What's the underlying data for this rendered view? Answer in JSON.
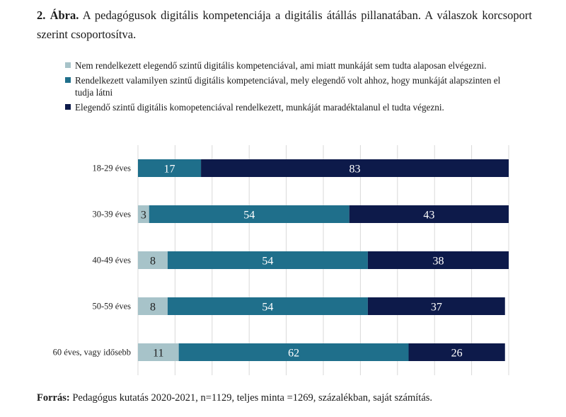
{
  "figure": {
    "number": "2. Ábra.",
    "caption": "A pedagógusok digitális kompetenciája a digitális átállás pillanatában. A válaszok korcsoport szerint csoportosítva."
  },
  "source": {
    "label": "Forrás:",
    "text": "Pedagógus kutatás 2020-2021, n=1129, teljes minta =1269, százalékban, saját számítás."
  },
  "colors": {
    "series0": "#a7c3c9",
    "series1": "#1f6f8b",
    "series2": "#0d1a4a",
    "grid": "#d9d9d9"
  },
  "chart_data": {
    "type": "bar",
    "orientation": "horizontal",
    "stacked": true,
    "categories": [
      "18-29 éves",
      "30-39 éves",
      "40-49 éves",
      "50-59 éves",
      "60 éves, vagy idősebb"
    ],
    "series": [
      {
        "name": "Nem rendelkezett elegendő szintű digitális kompetenciával, ami miatt munkáját sem tudta alaposan elvégezni.",
        "values": [
          0,
          3,
          8,
          8,
          11
        ]
      },
      {
        "name": "Rendelkezett valamilyen szintű digitális kompetenciával, mely elegendő volt ahhoz, hogy munkáját alapszinten el tudja látni",
        "values": [
          17,
          54,
          54,
          54,
          62
        ]
      },
      {
        "name": "Elegendő szintű digitális komopetenciával rendelkezett, munkáját maradéktalanul el tudta végezni.",
        "values": [
          83,
          43,
          38,
          37,
          26
        ]
      }
    ],
    "xlim": [
      0,
      100
    ],
    "grid": true,
    "legend": "top"
  }
}
